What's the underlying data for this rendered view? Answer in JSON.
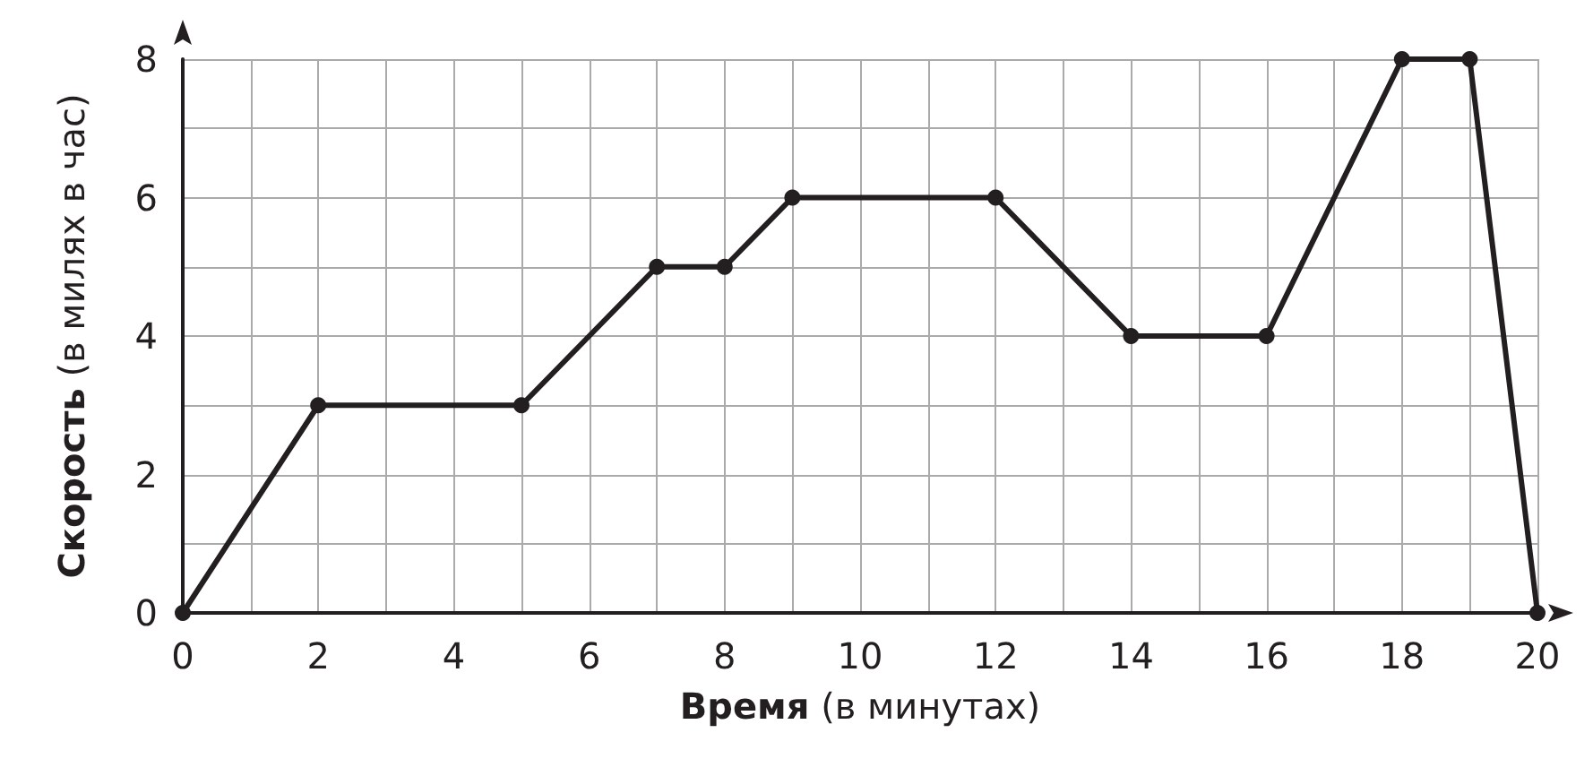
{
  "chart_data": {
    "type": "line",
    "xlabel": "Время (в минутах)",
    "ylabel": "Скорость (в милях в час)",
    "x": [
      0,
      2,
      5,
      7,
      8,
      9,
      12,
      14,
      16,
      18,
      19,
      20
    ],
    "values": [
      0,
      3,
      3,
      5,
      5,
      6,
      6,
      4,
      4,
      8,
      8,
      0
    ],
    "color": "#231f20",
    "marker": "circle",
    "line_style": "solid",
    "grid": true,
    "xlim": [
      0,
      20
    ],
    "ylim": [
      0,
      8
    ],
    "xticks": [
      0,
      {
        "value": 1,
        "label": null
      },
      2,
      {
        "value": 3,
        "label": null
      },
      4,
      {
        "value": 5,
        "label": null
      },
      6,
      {
        "value": 7,
        "label": null
      },
      8,
      {
        "value": 9,
        "label": null
      },
      10,
      {
        "value": 11,
        "label": null
      },
      12,
      {
        "value": 13,
        "label": null
      },
      14,
      {
        "value": 15,
        "label": null
      },
      16,
      {
        "value": 17,
        "label": null
      },
      18,
      {
        "value": 19,
        "label": null
      },
      20
    ],
    "yticks": [
      0,
      {
        "value": 1,
        "label": null
      },
      2,
      {
        "value": 3,
        "label": null
      },
      4,
      {
        "value": 5,
        "label": null
      },
      6,
      {
        "value": 7,
        "label": null
      },
      8
    ]
  }
}
